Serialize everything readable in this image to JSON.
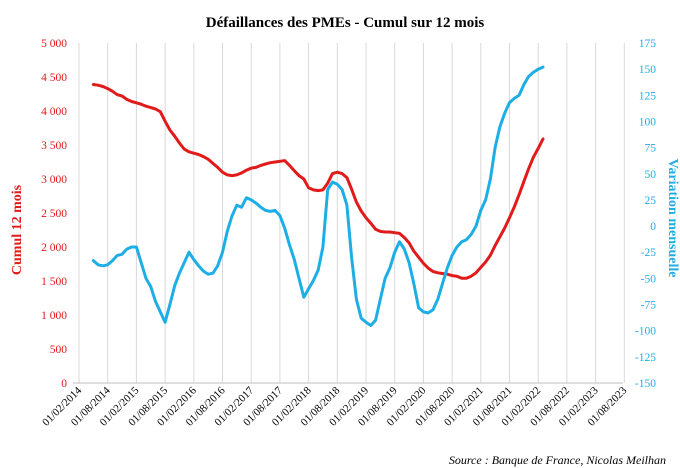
{
  "chart_data": {
    "type": "line",
    "title": "Défaillances des PMEs - Cumul sur 12 mois",
    "ylabel_left": "Cumul 12 mois",
    "ylabel_right": "Variation mensuelle",
    "source": "Source : Banque de France, Nicolas Meilhan",
    "ylim_left": [
      0,
      5000
    ],
    "ylim_right": [
      -150,
      175
    ],
    "y_ticks_left": [
      "0",
      "500",
      "1 000",
      "1 500",
      "2 000",
      "2 500",
      "3 000",
      "3 500",
      "4 000",
      "4 500",
      "5 000"
    ],
    "y_ticks_right": [
      "-150",
      "-125",
      "-100",
      "-75",
      "-50",
      "-25",
      "0",
      "25",
      "50",
      "75",
      "100",
      "125",
      "150",
      "175"
    ],
    "x_ticks": [
      "01/02/2014",
      "01/08/2014",
      "01/02/2015",
      "01/08/2015",
      "01/02/2016",
      "01/08/2016",
      "01/02/2017",
      "01/08/2017",
      "01/02/2018",
      "01/08/2018",
      "01/02/2019",
      "01/08/2019",
      "01/02/2020",
      "01/08/2020",
      "01/02/2021",
      "01/08/2021",
      "01/02/2022",
      "01/08/2022",
      "01/02/2023",
      "01/08/2023"
    ],
    "grid": "vertical",
    "series": [
      {
        "axis": "left",
        "color": "#e11a1a",
        "points": [
          [
            "2014-05",
            4390
          ],
          [
            "2014-06",
            4380
          ],
          [
            "2014-07",
            4360
          ],
          [
            "2014-08",
            4330
          ],
          [
            "2014-09",
            4290
          ],
          [
            "2014-10",
            4240
          ],
          [
            "2014-11",
            4220
          ],
          [
            "2014-12",
            4170
          ],
          [
            "2015-01",
            4140
          ],
          [
            "2015-02",
            4120
          ],
          [
            "2015-03",
            4100
          ],
          [
            "2015-04",
            4070
          ],
          [
            "2015-05",
            4050
          ],
          [
            "2015-06",
            4030
          ],
          [
            "2015-07",
            3990
          ],
          [
            "2015-08",
            3850
          ],
          [
            "2015-09",
            3720
          ],
          [
            "2015-10",
            3630
          ],
          [
            "2015-11",
            3530
          ],
          [
            "2015-12",
            3440
          ],
          [
            "2016-01",
            3400
          ],
          [
            "2016-02",
            3380
          ],
          [
            "2016-03",
            3360
          ],
          [
            "2016-04",
            3330
          ],
          [
            "2016-05",
            3290
          ],
          [
            "2016-06",
            3230
          ],
          [
            "2016-07",
            3170
          ],
          [
            "2016-08",
            3100
          ],
          [
            "2016-09",
            3060
          ],
          [
            "2016-10",
            3050
          ],
          [
            "2016-11",
            3060
          ],
          [
            "2016-12",
            3090
          ],
          [
            "2017-01",
            3130
          ],
          [
            "2017-02",
            3160
          ],
          [
            "2017-03",
            3170
          ],
          [
            "2017-04",
            3200
          ],
          [
            "2017-05",
            3220
          ],
          [
            "2017-06",
            3240
          ],
          [
            "2017-07",
            3250
          ],
          [
            "2017-08",
            3260
          ],
          [
            "2017-09",
            3270
          ],
          [
            "2017-10",
            3200
          ],
          [
            "2017-11",
            3120
          ],
          [
            "2017-12",
            3050
          ],
          [
            "2018-01",
            3000
          ],
          [
            "2018-02",
            2870
          ],
          [
            "2018-03",
            2840
          ],
          [
            "2018-04",
            2830
          ],
          [
            "2018-05",
            2840
          ],
          [
            "2018-06",
            2940
          ],
          [
            "2018-07",
            3080
          ],
          [
            "2018-08",
            3100
          ],
          [
            "2018-09",
            3080
          ],
          [
            "2018-10",
            3020
          ],
          [
            "2018-11",
            2850
          ],
          [
            "2018-12",
            2660
          ],
          [
            "2019-01",
            2530
          ],
          [
            "2019-02",
            2430
          ],
          [
            "2019-03",
            2350
          ],
          [
            "2019-04",
            2260
          ],
          [
            "2019-05",
            2230
          ],
          [
            "2019-06",
            2220
          ],
          [
            "2019-07",
            2220
          ],
          [
            "2019-08",
            2210
          ],
          [
            "2019-09",
            2200
          ],
          [
            "2019-10",
            2140
          ],
          [
            "2019-11",
            2060
          ],
          [
            "2019-12",
            1940
          ],
          [
            "2020-01",
            1850
          ],
          [
            "2020-02",
            1760
          ],
          [
            "2020-03",
            1690
          ],
          [
            "2020-04",
            1640
          ],
          [
            "2020-05",
            1620
          ],
          [
            "2020-06",
            1610
          ],
          [
            "2020-07",
            1600
          ],
          [
            "2020-08",
            1580
          ],
          [
            "2020-09",
            1570
          ],
          [
            "2020-10",
            1540
          ],
          [
            "2020-11",
            1540
          ],
          [
            "2020-12",
            1570
          ],
          [
            "2021-01",
            1620
          ],
          [
            "2021-02",
            1700
          ],
          [
            "2021-03",
            1780
          ],
          [
            "2021-04",
            1880
          ],
          [
            "2021-05",
            2020
          ],
          [
            "2021-06",
            2150
          ],
          [
            "2021-07",
            2280
          ],
          [
            "2021-08",
            2430
          ],
          [
            "2021-09",
            2590
          ],
          [
            "2021-10",
            2770
          ],
          [
            "2021-11",
            2960
          ],
          [
            "2021-12",
            3150
          ],
          [
            "2022-01",
            3320
          ],
          [
            "2022-02",
            3450
          ],
          [
            "2022-03",
            3590
          ]
        ]
      },
      {
        "axis": "right",
        "color": "#1eaee6",
        "points": [
          [
            "2014-05",
            -33
          ],
          [
            "2014-06",
            -37
          ],
          [
            "2014-07",
            -38
          ],
          [
            "2014-08",
            -37
          ],
          [
            "2014-09",
            -33
          ],
          [
            "2014-10",
            -28
          ],
          [
            "2014-11",
            -27
          ],
          [
            "2014-12",
            -22
          ],
          [
            "2015-01",
            -20
          ],
          [
            "2015-02",
            -20
          ],
          [
            "2015-03",
            -35
          ],
          [
            "2015-04",
            -50
          ],
          [
            "2015-05",
            -58
          ],
          [
            "2015-06",
            -72
          ],
          [
            "2015-07",
            -82
          ],
          [
            "2015-08",
            -92
          ],
          [
            "2015-09",
            -75
          ],
          [
            "2015-10",
            -57
          ],
          [
            "2015-11",
            -45
          ],
          [
            "2015-12",
            -35
          ],
          [
            "2016-01",
            -25
          ],
          [
            "2016-02",
            -32
          ],
          [
            "2016-03",
            -38
          ],
          [
            "2016-04",
            -43
          ],
          [
            "2016-05",
            -46
          ],
          [
            "2016-06",
            -45
          ],
          [
            "2016-07",
            -38
          ],
          [
            "2016-08",
            -25
          ],
          [
            "2016-09",
            -5
          ],
          [
            "2016-10",
            10
          ],
          [
            "2016-11",
            20
          ],
          [
            "2016-12",
            18
          ],
          [
            "2017-01",
            27
          ],
          [
            "2017-02",
            25
          ],
          [
            "2017-03",
            22
          ],
          [
            "2017-04",
            18
          ],
          [
            "2017-05",
            15
          ],
          [
            "2017-06",
            14
          ],
          [
            "2017-07",
            15
          ],
          [
            "2017-08",
            10
          ],
          [
            "2017-09",
            -2
          ],
          [
            "2017-10",
            -18
          ],
          [
            "2017-11",
            -32
          ],
          [
            "2017-12",
            -50
          ],
          [
            "2018-01",
            -68
          ],
          [
            "2018-02",
            -60
          ],
          [
            "2018-03",
            -52
          ],
          [
            "2018-04",
            -42
          ],
          [
            "2018-05",
            -20
          ],
          [
            "2018-06",
            35
          ],
          [
            "2018-07",
            42
          ],
          [
            "2018-08",
            40
          ],
          [
            "2018-09",
            35
          ],
          [
            "2018-10",
            20
          ],
          [
            "2018-11",
            -30
          ],
          [
            "2018-12",
            -70
          ],
          [
            "2019-01",
            -88
          ],
          [
            "2019-02",
            -92
          ],
          [
            "2019-03",
            -95
          ],
          [
            "2019-04",
            -90
          ],
          [
            "2019-05",
            -70
          ],
          [
            "2019-06",
            -50
          ],
          [
            "2019-07",
            -40
          ],
          [
            "2019-08",
            -25
          ],
          [
            "2019-09",
            -15
          ],
          [
            "2019-10",
            -22
          ],
          [
            "2019-11",
            -35
          ],
          [
            "2019-12",
            -55
          ],
          [
            "2020-01",
            -78
          ],
          [
            "2020-02",
            -82
          ],
          [
            "2020-03",
            -83
          ],
          [
            "2020-04",
            -80
          ],
          [
            "2020-05",
            -70
          ],
          [
            "2020-06",
            -55
          ],
          [
            "2020-07",
            -40
          ],
          [
            "2020-08",
            -28
          ],
          [
            "2020-09",
            -20
          ],
          [
            "2020-10",
            -15
          ],
          [
            "2020-11",
            -13
          ],
          [
            "2020-12",
            -8
          ],
          [
            "2021-01",
            0
          ],
          [
            "2021-02",
            15
          ],
          [
            "2021-03",
            25
          ],
          [
            "2021-04",
            45
          ],
          [
            "2021-05",
            75
          ],
          [
            "2021-06",
            95
          ],
          [
            "2021-07",
            108
          ],
          [
            "2021-08",
            118
          ],
          [
            "2021-09",
            122
          ],
          [
            "2021-10",
            125
          ],
          [
            "2021-11",
            135
          ],
          [
            "2021-12",
            143
          ],
          [
            "2022-01",
            147
          ],
          [
            "2022-02",
            150
          ],
          [
            "2022-03",
            152
          ]
        ]
      }
    ]
  }
}
